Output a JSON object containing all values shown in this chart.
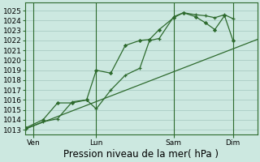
{
  "xlabel": "Pression niveau de la mer( hPa )",
  "background_color": "#cce8e0",
  "grid_color": "#aaccc4",
  "line_color": "#2d6a2d",
  "ylim": [
    1012.5,
    1025.8
  ],
  "yticks": [
    1013,
    1014,
    1015,
    1016,
    1017,
    1018,
    1019,
    1020,
    1021,
    1022,
    1023,
    1024,
    1025
  ],
  "xlim": [
    -0.05,
    9.55
  ],
  "xtick_labels": [
    "Ven",
    "Lun",
    "Sam",
    "Dim"
  ],
  "xtick_positions": [
    0.3,
    2.9,
    6.1,
    8.55
  ],
  "vlines_x": [
    0.3,
    2.9,
    6.1,
    8.55
  ],
  "series_plus_x": [
    0.0,
    0.7,
    1.3,
    1.9,
    2.5,
    2.9,
    3.5,
    4.1,
    4.7,
    5.1,
    5.5,
    6.1,
    6.5,
    7.0,
    7.4,
    7.8,
    8.2,
    8.55
  ],
  "series_plus_y": [
    1013.1,
    1013.8,
    1014.1,
    1015.8,
    1016.0,
    1015.1,
    1017.0,
    1018.5,
    1019.2,
    1022.0,
    1022.2,
    1024.4,
    1024.8,
    1024.6,
    1024.5,
    1024.3,
    1024.6,
    1024.2
  ],
  "series_diamond_x": [
    0.0,
    0.7,
    1.3,
    1.9,
    2.5,
    2.9,
    3.5,
    4.1,
    4.7,
    5.1,
    5.5,
    6.1,
    6.5,
    7.0,
    7.4,
    7.8,
    8.2,
    8.55
  ],
  "series_diamond_y": [
    1013.2,
    1014.0,
    1015.7,
    1015.7,
    1016.0,
    1019.0,
    1018.7,
    1021.5,
    1022.0,
    1022.1,
    1023.1,
    1024.3,
    1024.8,
    1024.4,
    1023.8,
    1023.1,
    1024.5,
    1022.0
  ],
  "trend_x": [
    0.0,
    9.55
  ],
  "trend_y": [
    1013.1,
    1022.1
  ],
  "xlabel_fontsize": 8.5,
  "tick_fontsize": 6.5
}
